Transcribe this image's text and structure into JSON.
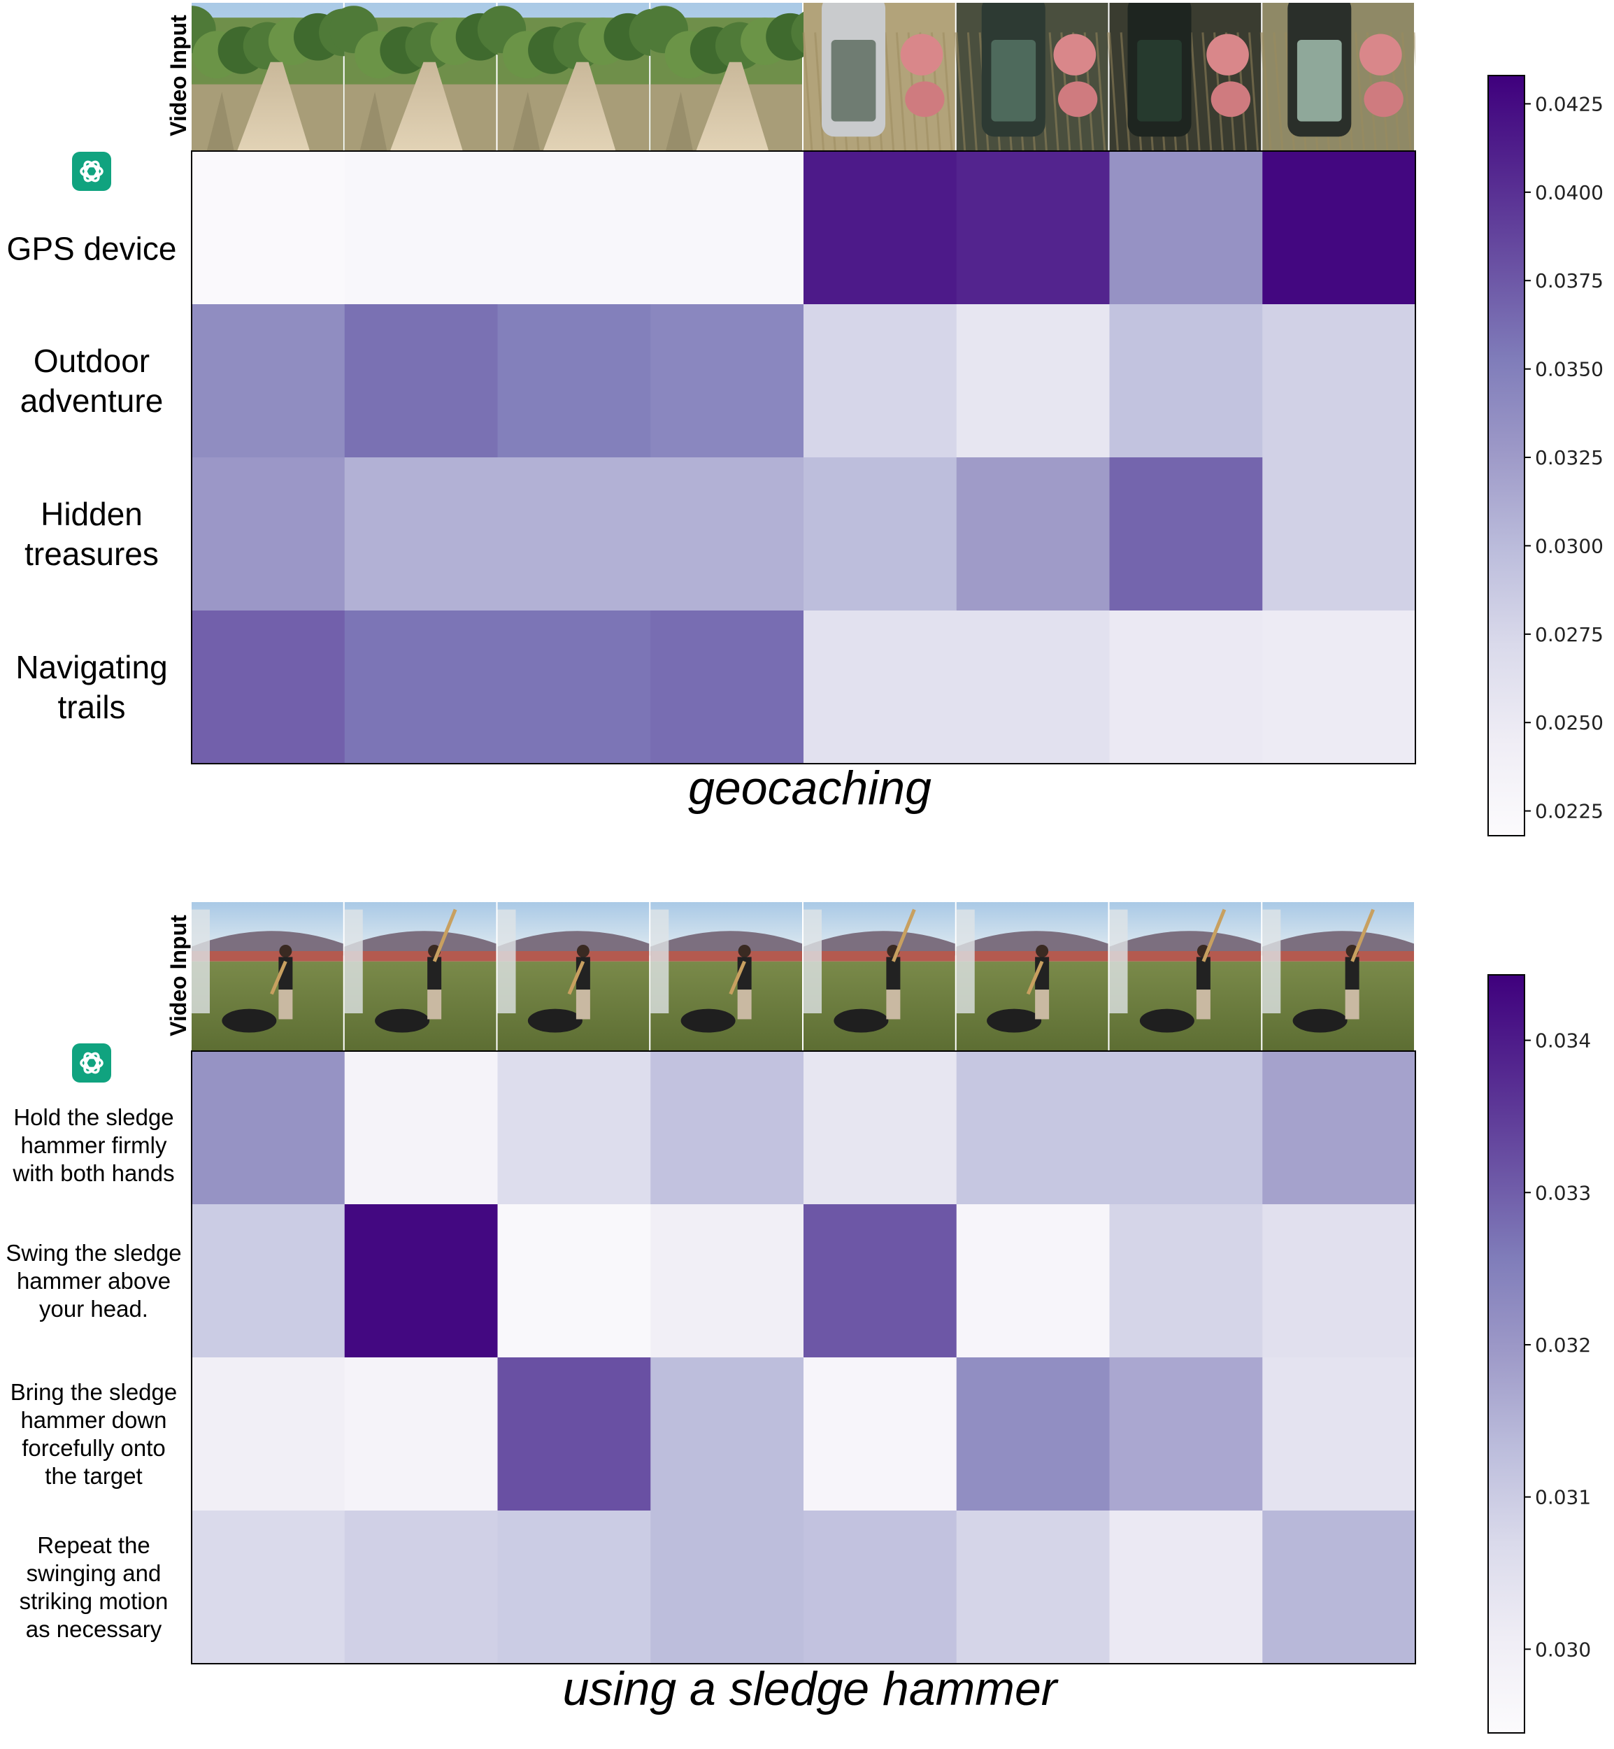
{
  "chart_data": [
    {
      "type": "heatmap",
      "title": "geocaching",
      "column_header": "Video Input",
      "frame_scene": "trail",
      "columns": [
        "frame-1",
        "frame-2",
        "frame-3",
        "frame-4",
        "frame-5",
        "frame-6",
        "frame-7",
        "frame-8"
      ],
      "rows": [
        {
          "label": [
            "GPS device"
          ],
          "values": [
            0.0222,
            0.0226,
            0.0226,
            0.0226,
            0.0415,
            0.0408,
            0.0333,
            0.0428
          ]
        },
        {
          "label": [
            "Outdoor",
            "adventure"
          ],
          "values": [
            0.0338,
            0.036,
            0.035,
            0.0343,
            0.0275,
            0.0255,
            0.0293,
            0.028
          ]
        },
        {
          "label": [
            "Hidden",
            "treasures"
          ],
          "values": [
            0.0328,
            0.0308,
            0.0308,
            0.0308,
            0.0298,
            0.0325,
            0.0367,
            0.028
          ]
        },
        {
          "label": [
            "Navigating",
            "trails"
          ],
          "values": [
            0.037,
            0.0357,
            0.0357,
            0.0362,
            0.0262,
            0.0262,
            0.025,
            0.0247
          ]
        }
      ],
      "colorbar": {
        "min": 0.0218,
        "max": 0.0433,
        "ticks": [
          0.0225,
          0.025,
          0.0275,
          0.03,
          0.0325,
          0.035,
          0.0375,
          0.04,
          0.0425
        ],
        "tick_labels": [
          "0.0225",
          "0.0250",
          "0.0275",
          "0.0300",
          "0.0325",
          "0.0350",
          "0.0375",
          "0.0400",
          "0.0425"
        ]
      },
      "colormap": [
        "#fcfbfd",
        "#efedf5",
        "#dadaeb",
        "#bcbddc",
        "#9e9ac8",
        "#807dba",
        "#6a51a3",
        "#54278f",
        "#3f007d"
      ]
    },
    {
      "type": "heatmap",
      "title": "using a sledge hammer",
      "column_header": "Video Input",
      "frame_scene": "yard",
      "columns": [
        "frame-1",
        "frame-2",
        "frame-3",
        "frame-4",
        "frame-5",
        "frame-6",
        "frame-7",
        "frame-8"
      ],
      "rows": [
        {
          "label": [
            "Hold the sledge",
            "hammer firmly",
            "with both hands"
          ],
          "values": [
            0.0321,
            0.0298,
            0.0306,
            0.0312,
            0.0303,
            0.0311,
            0.0311,
            0.0318
          ]
        },
        {
          "label": [
            "Swing the sledge",
            "hammer above",
            "your head."
          ],
          "values": [
            0.031,
            0.0343,
            0.0296,
            0.03,
            0.0331,
            0.0297,
            0.0308,
            0.0305
          ]
        },
        {
          "label": [
            "Bring the sledge",
            "hammer down",
            "forcefully onto",
            "the target"
          ],
          "values": [
            0.03,
            0.0298,
            0.0332,
            0.0313,
            0.0297,
            0.0322,
            0.0317,
            0.0304
          ]
        },
        {
          "label": [
            "Repeat the",
            "swinging and",
            "striking motion",
            "as necessary"
          ],
          "values": [
            0.0307,
            0.0309,
            0.031,
            0.0313,
            0.0312,
            0.0308,
            0.0302,
            0.0314
          ]
        }
      ],
      "colorbar": {
        "min": 0.02945,
        "max": 0.03443,
        "ticks": [
          0.03,
          0.031,
          0.032,
          0.033,
          0.034
        ],
        "tick_labels": [
          "0.030",
          "0.031",
          "0.032",
          "0.033",
          "0.034"
        ]
      },
      "colormap": [
        "#fcfbfd",
        "#efedf5",
        "#dadaeb",
        "#bcbddc",
        "#9e9ac8",
        "#807dba",
        "#6a51a3",
        "#54278f",
        "#3f007d"
      ]
    }
  ],
  "icons": {
    "row_header_icon": "chatgpt-logo-icon",
    "logo_color": "#10a37f"
  }
}
